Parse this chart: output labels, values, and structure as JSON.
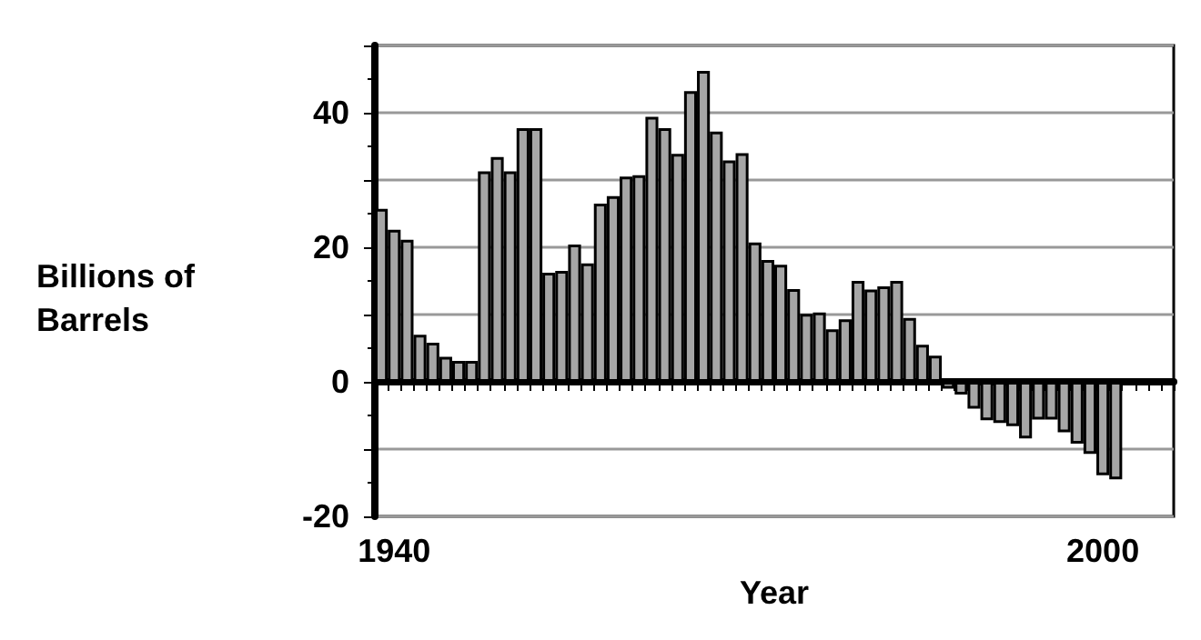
{
  "chart_data": {
    "type": "bar",
    "xlabel": "Year",
    "ylabel": "Billions of Barrels",
    "categories": [
      null,
      "1940",
      null,
      null,
      null,
      null,
      null,
      null,
      null,
      null,
      null,
      null,
      null,
      null,
      null,
      null,
      null,
      null,
      null,
      null,
      null,
      null,
      null,
      null,
      null,
      null,
      null,
      null,
      null,
      null,
      null,
      null,
      null,
      null,
      null,
      null,
      null,
      null,
      null,
      null,
      null,
      null,
      null,
      null,
      null,
      null,
      null,
      null,
      null,
      null,
      null,
      null,
      null,
      null,
      null,
      null,
      "2000",
      null,
      null,
      null,
      null,
      null
    ],
    "values": [
      25.7,
      22.6,
      21.1,
      7.0,
      5.8,
      3.7,
      3.1,
      3.1,
      31.3,
      33.4,
      31.3,
      37.7,
      37.7,
      16.2,
      16.5,
      20.4,
      17.6,
      26.5,
      27.6,
      30.5,
      30.7,
      39.4,
      37.7,
      33.9,
      43.2,
      46.2,
      37.2,
      32.9,
      34.0,
      20.7,
      18.1,
      17.4,
      13.8,
      10.1,
      10.3,
      7.8,
      9.3,
      15.0,
      13.7,
      14.2,
      15.0,
      9.5,
      5.5,
      3.9,
      -1.0,
      -1.9,
      -4.0,
      -5.7,
      -6.1,
      -6.6,
      -8.4,
      -5.6,
      -5.6,
      -7.5,
      -9.2,
      -10.7,
      -13.9,
      -14.5,
      null,
      null,
      null,
      null
    ],
    "color": "#a6a6a6",
    "ylim": [
      -20,
      50
    ],
    "yticks": [
      -20,
      {
        "value": -10,
        "label": null
      },
      0,
      {
        "value": 10,
        "label": null
      },
      20,
      {
        "value": 30,
        "label": null
      },
      40,
      {
        "value": 50,
        "label": null
      }
    ],
    "grid": "y"
  }
}
